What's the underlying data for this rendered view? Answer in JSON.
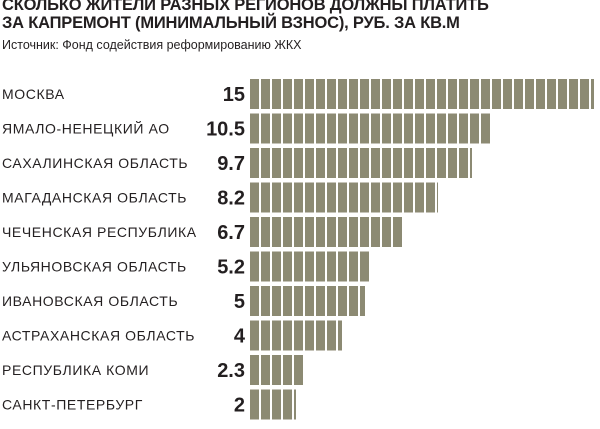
{
  "header": {
    "title_line1": "СКОЛЬКО ЖИТЕЛИ РАЗНЫХ РЕГИОНОВ ДОЛЖНЫ ПЛАТИТЬ",
    "title_line2": "ЗА КАПРЕМОНТ (МИНИМАЛЬНЫЙ ВЗНОС), РУБ. ЗА КВ.М",
    "source": "Источник: Фонд содействия реформированию ЖКХ"
  },
  "colors": {
    "bar": "#8c8a73",
    "text": "#231f20",
    "background": "#ffffff"
  },
  "chart_data": {
    "type": "bar",
    "orientation": "horizontal",
    "title": "СКОЛЬКО ЖИТЕЛИ РАЗНЫХ РЕГИОНОВ ДОЛЖНЫ ПЛАТИТЬ ЗА КАПРЕМОНТ (МИНИМАЛЬНЫЙ ВЗНОС), РУБ. ЗА КВ.М",
    "categories": [
      "МОСКВА",
      "ЯМАЛО-НЕНЕЦКИЙ АО",
      "САХАЛИНСКАЯ ОБЛАСТЬ",
      "МАГАДАНСКАЯ ОБЛАСТЬ",
      "ЧЕЧЕНСКАЯ РЕСПУБЛИКА",
      "УЛЬЯНОВСКАЯ ОБЛАСТЬ",
      "ИВАНОВСКАЯ ОБЛАСТЬ",
      "АСТРАХАНСКАЯ ОБЛАСТЬ",
      "РЕСПУБЛИКА КОМИ",
      "САНКТ-ПЕТЕРБУРГ"
    ],
    "values": [
      15,
      10.5,
      9.7,
      8.2,
      6.7,
      5.2,
      5,
      4,
      2.3,
      2
    ],
    "value_labels": [
      "15",
      "10.5",
      "9.7",
      "8.2",
      "6.7",
      "5.2",
      "5",
      "4",
      "2.3",
      "2"
    ],
    "xlim": [
      0,
      15
    ],
    "grid": false,
    "legend": "none"
  }
}
